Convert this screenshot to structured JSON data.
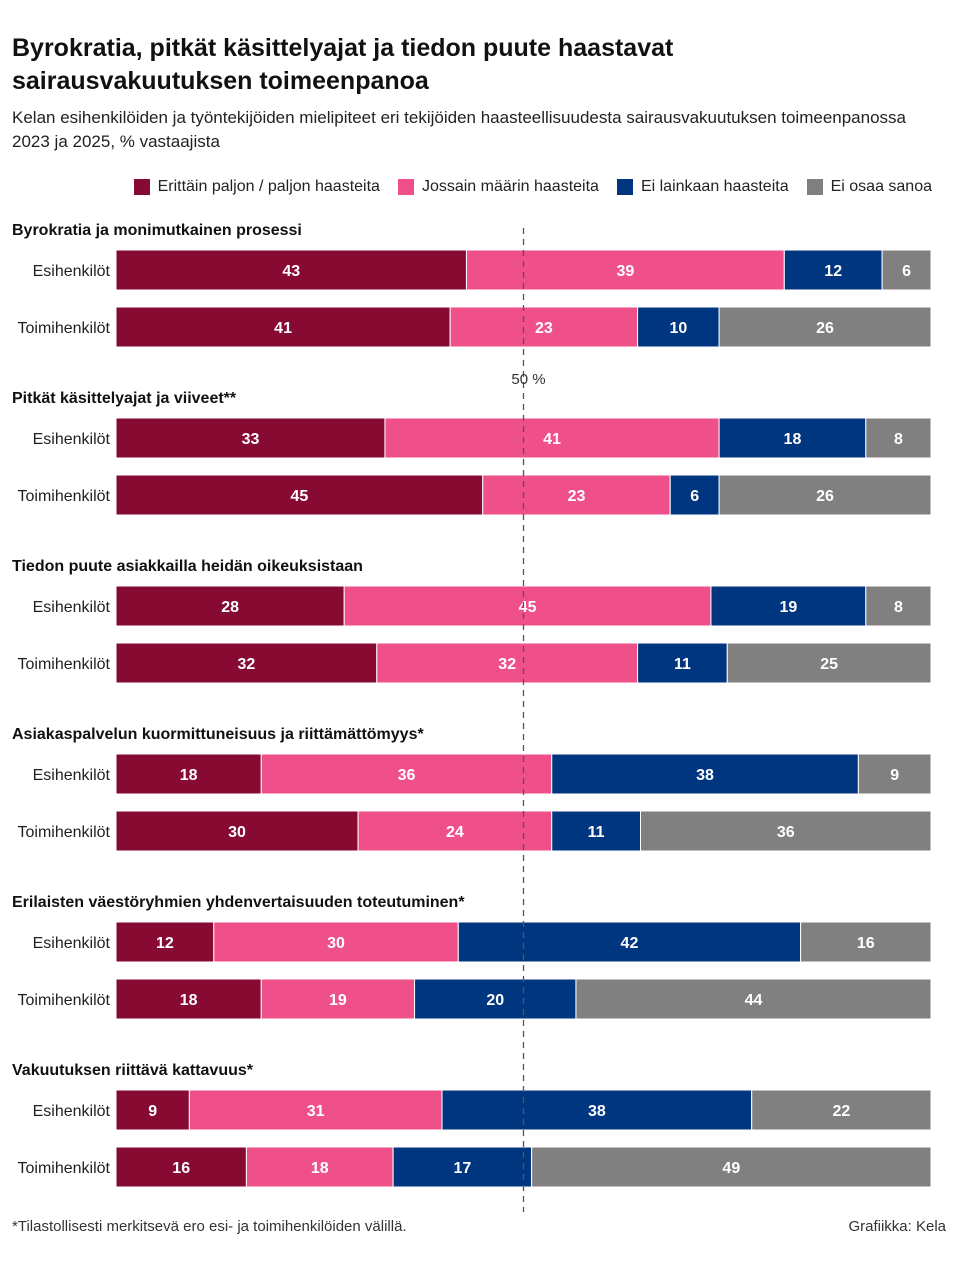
{
  "title": "Byrokratia, pitkät käsittelyajat ja tiedon puute haastavat sairausvakuutuksen toimeenpanoa",
  "subtitle": "Kelan esihenkilöiden ja työntekijöiden mielipiteet eri tekijöiden haasteellisuudesta sairausvakuutuksen toimeenpanossa 2023 ja 2025, % vastaajista",
  "footnote": "*Tilastollisesti merkitsevä ero esi- ja toimihenkilöiden välillä.",
  "credit": "Grafiikka: Kela",
  "colors": {
    "very_much": "#870a32",
    "somewhat": "#f0508a",
    "not_at_all": "#003580",
    "dont_know": "#808080"
  },
  "chart_data": {
    "type": "stacked-bar-horizontal",
    "unit": "%",
    "xlim": [
      0,
      100
    ],
    "reference_line": {
      "value": 50,
      "label": "50 %"
    },
    "series": [
      {
        "key": "very_much",
        "name": "Erittäin paljon / paljon haasteita",
        "color": "#870a32"
      },
      {
        "key": "somewhat",
        "name": "Jossain määrin haasteita",
        "color": "#f0508a"
      },
      {
        "key": "not_at_all",
        "name": "Ei lainkaan haasteita",
        "color": "#003580"
      },
      {
        "key": "dont_know",
        "name": "Ei osaa sanoa",
        "color": "#808080"
      }
    ],
    "groups": [
      {
        "title": "Byrokratia ja monimutkainen prosessi",
        "rows": [
          {
            "label": "Esihenkilöt",
            "values": [
              43,
              39,
              12,
              6
            ]
          },
          {
            "label": "Toimihenkilöt",
            "values": [
              41,
              23,
              10,
              26
            ]
          }
        ]
      },
      {
        "title": "Pitkät käsittelyajat ja viiveet**",
        "rows": [
          {
            "label": "Esihenkilöt",
            "values": [
              33,
              41,
              18,
              8
            ]
          },
          {
            "label": "Toimihenkilöt",
            "values": [
              45,
              23,
              6,
              26
            ]
          }
        ]
      },
      {
        "title": "Tiedon puute asiakkailla heidän oikeuksistaan",
        "rows": [
          {
            "label": "Esihenkilöt",
            "values": [
              28,
              45,
              19,
              8
            ]
          },
          {
            "label": "Toimihenkilöt",
            "values": [
              32,
              32,
              11,
              25
            ]
          }
        ]
      },
      {
        "title": "Asiakaspalvelun kuormittuneisuus ja riittämättömyys*",
        "rows": [
          {
            "label": "Esihenkilöt",
            "values": [
              18,
              36,
              38,
              9
            ]
          },
          {
            "label": "Toimihenkilöt",
            "values": [
              30,
              24,
              11,
              36
            ]
          }
        ]
      },
      {
        "title": "Erilaisten väestöryhmien yhdenvertaisuuden toteutuminen*",
        "rows": [
          {
            "label": "Esihenkilöt",
            "values": [
              12,
              30,
              42,
              16
            ]
          },
          {
            "label": "Toimihenkilöt",
            "values": [
              18,
              19,
              20,
              44
            ]
          }
        ]
      },
      {
        "title": "Vakuutuksen riittävä kattavuus*",
        "rows": [
          {
            "label": "Esihenkilöt",
            "values": [
              9,
              31,
              38,
              22
            ]
          },
          {
            "label": "Toimihenkilöt",
            "values": [
              16,
              18,
              17,
              49
            ]
          }
        ]
      }
    ]
  }
}
